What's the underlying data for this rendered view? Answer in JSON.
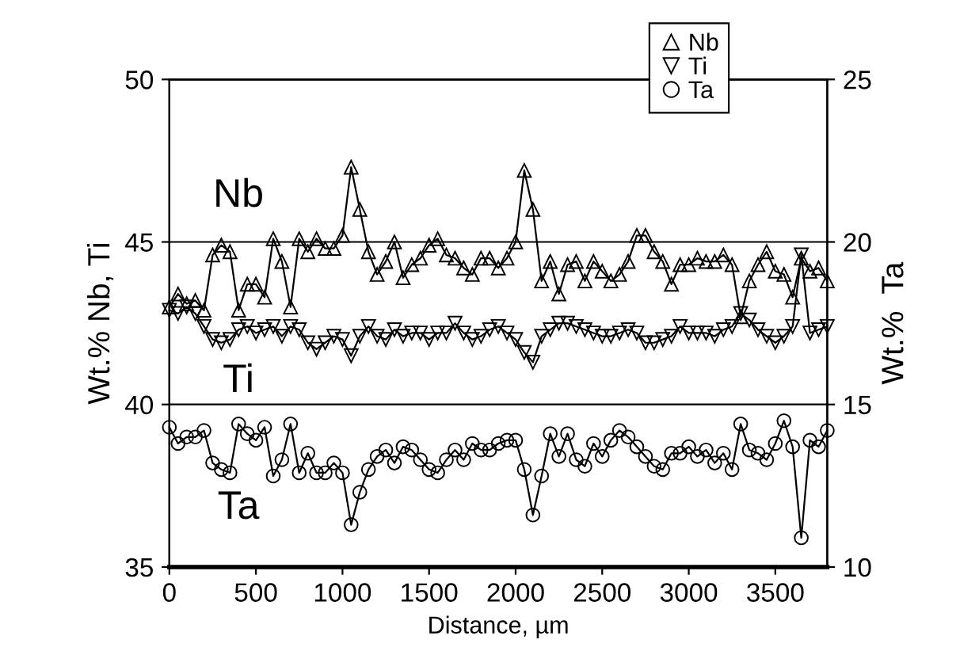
{
  "chart_data": {
    "type": "line",
    "xlabel": "Distance, µm",
    "ylabel": "Wt.% Nb, Ti",
    "y2label": "Wt.%  Ta",
    "x": [
      0,
      50,
      100,
      150,
      200,
      250,
      300,
      350,
      400,
      450,
      500,
      550,
      600,
      650,
      700,
      750,
      800,
      850,
      900,
      950,
      1000,
      1050,
      1100,
      1150,
      1200,
      1250,
      1300,
      1350,
      1400,
      1450,
      1500,
      1550,
      1600,
      1650,
      1700,
      1750,
      1800,
      1850,
      1900,
      1950,
      2000,
      2050,
      2100,
      2150,
      2200,
      2250,
      2300,
      2350,
      2400,
      2450,
      2500,
      2550,
      2600,
      2650,
      2700,
      2750,
      2800,
      2850,
      2900,
      2950,
      3000,
      3050,
      3100,
      3150,
      3200,
      3250,
      3300,
      3350,
      3400,
      3450,
      3500,
      3550,
      3600,
      3650,
      3700,
      3750,
      3800
    ],
    "series": [
      {
        "name": "Nb",
        "color": "#000000",
        "marker": "triangle",
        "values": [
          43.0,
          43.4,
          43.1,
          43.2,
          42.9,
          44.6,
          44.9,
          44.7,
          42.9,
          43.7,
          43.7,
          43.3,
          45.1,
          44.4,
          43.0,
          45.1,
          44.7,
          45.1,
          44.8,
          44.8,
          45.2,
          47.3,
          46.0,
          44.7,
          44.0,
          44.4,
          45.0,
          43.9,
          44.3,
          44.5,
          44.9,
          45.1,
          44.6,
          44.5,
          44.2,
          44.0,
          44.5,
          44.5,
          44.2,
          44.5,
          45.0,
          47.2,
          46.0,
          43.8,
          44.4,
          43.4,
          44.3,
          44.4,
          43.8,
          44.4,
          44.1,
          43.8,
          44.0,
          44.4,
          45.2,
          45.2,
          44.7,
          44.4,
          43.7,
          44.3,
          44.3,
          44.5,
          44.4,
          44.4,
          44.6,
          44.3,
          42.7,
          43.8,
          44.3,
          44.7,
          44.1,
          44.0,
          43.3,
          44.5,
          44.1,
          44.2,
          43.8
        ]
      },
      {
        "name": "Ti",
        "color": "#000000",
        "marker": "triangle_down",
        "values": [
          42.9,
          42.8,
          43.0,
          42.8,
          42.4,
          42.0,
          41.9,
          42.0,
          42.3,
          42.4,
          42.2,
          42.3,
          42.4,
          42.1,
          42.4,
          42.3,
          41.9,
          41.7,
          41.9,
          42.1,
          42.0,
          41.5,
          42.1,
          42.4,
          42.1,
          42.0,
          42.3,
          42.1,
          42.2,
          42.2,
          42.0,
          42.2,
          42.2,
          42.5,
          42.2,
          42.0,
          42.1,
          42.3,
          42.4,
          42.2,
          42.0,
          41.6,
          41.3,
          42.1,
          42.3,
          42.5,
          42.5,
          42.4,
          42.3,
          42.2,
          42.1,
          42.1,
          42.2,
          42.3,
          42.2,
          41.9,
          41.9,
          42.0,
          42.1,
          42.4,
          42.2,
          42.2,
          42.2,
          42.1,
          42.3,
          42.4,
          42.8,
          42.6,
          42.3,
          42.1,
          41.9,
          42.1,
          42.4,
          44.6,
          42.2,
          42.3,
          42.4
        ]
      },
      {
        "name": "Ta",
        "color": "#000000",
        "marker": "circle",
        "axis": "y2",
        "values": [
          14.3,
          13.8,
          14.0,
          14.0,
          14.2,
          13.2,
          13.0,
          12.9,
          14.4,
          14.1,
          13.9,
          14.3,
          12.8,
          13.3,
          14.4,
          12.9,
          13.5,
          12.9,
          12.9,
          13.2,
          12.9,
          11.3,
          12.3,
          13.0,
          13.4,
          13.6,
          13.2,
          13.7,
          13.6,
          13.3,
          13.0,
          12.9,
          13.3,
          13.6,
          13.3,
          13.8,
          13.6,
          13.6,
          13.8,
          13.9,
          13.9,
          13.0,
          11.6,
          12.8,
          14.1,
          13.4,
          14.1,
          13.3,
          13.1,
          13.8,
          13.4,
          13.9,
          14.2,
          14.0,
          13.7,
          13.4,
          13.1,
          13.0,
          13.5,
          13.5,
          13.7,
          13.4,
          13.6,
          13.2,
          13.5,
          13.0,
          14.4,
          13.6,
          13.5,
          13.3,
          13.8,
          14.5,
          13.7,
          10.9,
          13.9,
          13.7,
          14.2
        ]
      }
    ],
    "annotations": [
      "Nb",
      "Ti",
      "Ta"
    ],
    "xlim": [
      0,
      3800
    ],
    "xticks": [
      0,
      500,
      1000,
      1500,
      2000,
      2500,
      3000,
      3500
    ],
    "ylim": [
      35,
      50
    ],
    "yticks": [
      35,
      40,
      45,
      50
    ],
    "y2lim": [
      10,
      25
    ],
    "y2ticks": [
      10,
      15,
      20,
      25
    ],
    "grid": "y",
    "legend": "top"
  }
}
